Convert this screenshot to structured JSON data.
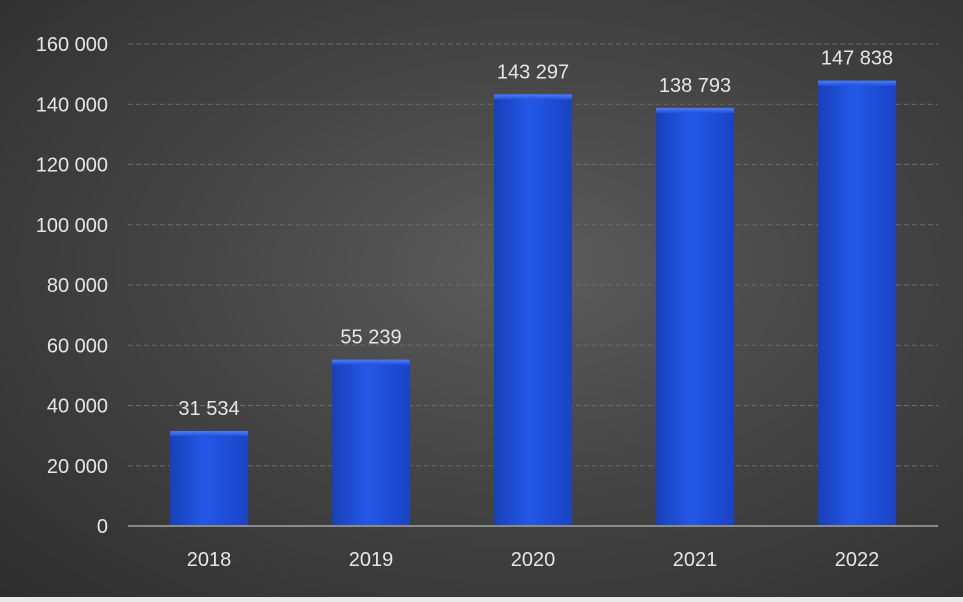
{
  "chart_data": {
    "type": "bar",
    "title": "",
    "xlabel": "",
    "ylabel": "",
    "categories": [
      "2018",
      "2019",
      "2020",
      "2021",
      "2022"
    ],
    "values": [
      31534,
      55239,
      143297,
      138793,
      147838
    ],
    "data_labels": [
      "31 534",
      "55 239",
      "143 297",
      "138 793",
      "147 838"
    ],
    "ylim": [
      0,
      160000
    ],
    "yticks": [
      0,
      20000,
      40000,
      60000,
      80000,
      100000,
      120000,
      140000,
      160000
    ],
    "ytick_labels": [
      "0",
      "20 000",
      "40 000",
      "60 000",
      "80 000",
      "100 000",
      "120 000",
      "140 000",
      "160 000"
    ],
    "grid": true,
    "legend": "none",
    "bar_color": "#1f4fd6",
    "background_color": "#454545",
    "text_color": "#e6e6e6"
  }
}
